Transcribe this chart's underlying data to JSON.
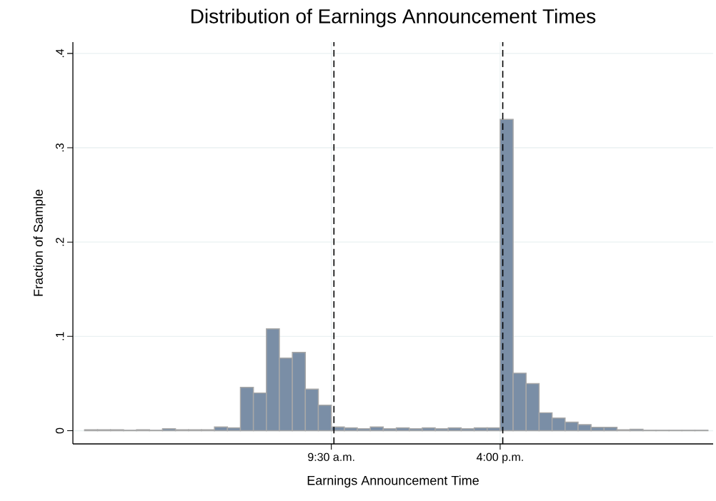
{
  "chart_data": {
    "type": "histogram",
    "title": "Distribution of Earnings Announcement Times",
    "xlabel": "Earnings Announcement Time",
    "ylabel": "Fraction of Sample",
    "bins": [
      0,
      0.5,
      1,
      1.5,
      2,
      2.5,
      3,
      3.5,
      4,
      4.5,
      5,
      5.5,
      6,
      6.5,
      7,
      7.5,
      8,
      8.5,
      9,
      9.5,
      10,
      10.5,
      11,
      11.5,
      12,
      12.5,
      13,
      13.5,
      14,
      14.5,
      15,
      15.5,
      16,
      16.5,
      17,
      17.5,
      18,
      18.5,
      19,
      19.5,
      20,
      20.5,
      21,
      21.5,
      22,
      22.5,
      23,
      23.5,
      24
    ],
    "values": [
      0.001,
      0.001,
      0.001,
      0.0005,
      0.001,
      0.0005,
      0.002,
      0.001,
      0.001,
      0.001,
      0.004,
      0.003,
      0.046,
      0.04,
      0.108,
      0.077,
      0.083,
      0.044,
      0.027,
      0.004,
      0.003,
      0.002,
      0.004,
      0.002,
      0.003,
      0.002,
      0.003,
      0.002,
      0.003,
      0.002,
      0.003,
      0.003,
      0.33,
      0.061,
      0.05,
      0.019,
      0.0135,
      0.009,
      0.0065,
      0.0035,
      0.0035,
      0.001,
      0.0015,
      0.0005,
      0.0005,
      0.0005,
      0.0005,
      0.0005
    ],
    "color": "#7a8ea6",
    "xlim": [
      -0.45,
      24.2
    ],
    "ylim": [
      -0.014,
      0.412
    ],
    "xticks": [
      {
        "value": 9.5,
        "label": "9:30 a.m."
      },
      {
        "value": 16,
        "label": "4:00 p.m."
      }
    ],
    "yticks": [
      {
        "value": 0,
        "label": "0"
      },
      {
        "value": 0.1,
        "label": ".1"
      },
      {
        "value": 0.2,
        "label": ".2"
      },
      {
        "value": 0.3,
        "label": ".3"
      },
      {
        "value": 0.4,
        "label": ".4"
      }
    ],
    "ref_lines": [
      {
        "axis": "x",
        "value": 9.6,
        "color": "#000000",
        "line_style": "dashed"
      },
      {
        "axis": "x",
        "value": 16.1,
        "color": "#000000",
        "line_style": "dashed"
      }
    ],
    "grid": true
  }
}
